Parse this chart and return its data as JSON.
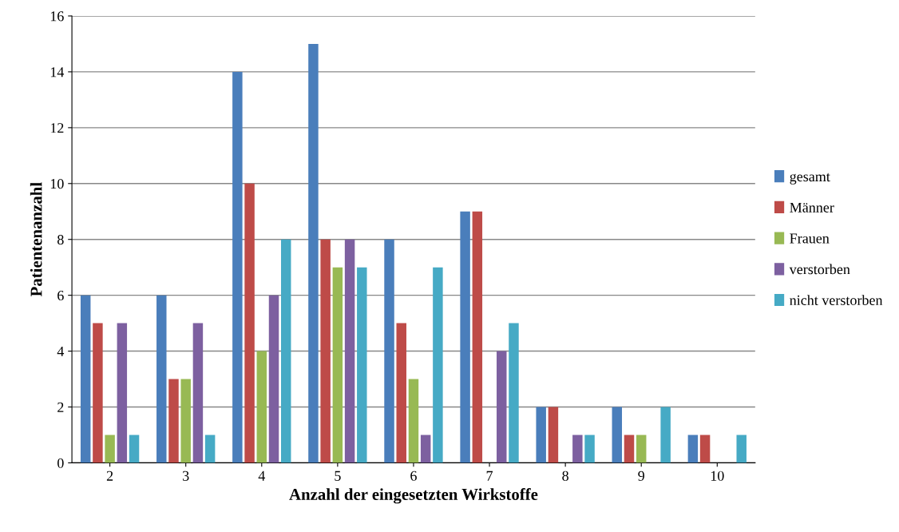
{
  "chart_data": {
    "type": "bar",
    "xlabel": "Anzahl der eingesetzten Wirkstoffe",
    "ylabel": "Patientenanzahl",
    "categories": [
      "2",
      "3",
      "4",
      "5",
      "6",
      "7",
      "8",
      "9",
      "10"
    ],
    "series": [
      {
        "name": "gesamt",
        "color": "#4a7ebb",
        "values": [
          6,
          6,
          14,
          15,
          8,
          9,
          2,
          2,
          1
        ]
      },
      {
        "name": "Männer",
        "color": "#be4b48",
        "values": [
          5,
          3,
          10,
          8,
          5,
          9,
          2,
          1,
          1
        ]
      },
      {
        "name": "Frauen",
        "color": "#98b954",
        "values": [
          1,
          3,
          4,
          7,
          3,
          0,
          0,
          1,
          0
        ]
      },
      {
        "name": "verstorben",
        "color": "#7d60a0",
        "values": [
          5,
          5,
          6,
          8,
          1,
          4,
          1,
          0,
          0
        ]
      },
      {
        "name": "nicht verstorben",
        "color": "#46aac5",
        "values": [
          1,
          1,
          8,
          7,
          7,
          5,
          1,
          2,
          1
        ]
      }
    ],
    "ylim": [
      0,
      16
    ],
    "yticks": [
      0,
      2,
      4,
      6,
      8,
      10,
      12,
      14,
      16
    ],
    "grid": "y",
    "legend": "right"
  }
}
